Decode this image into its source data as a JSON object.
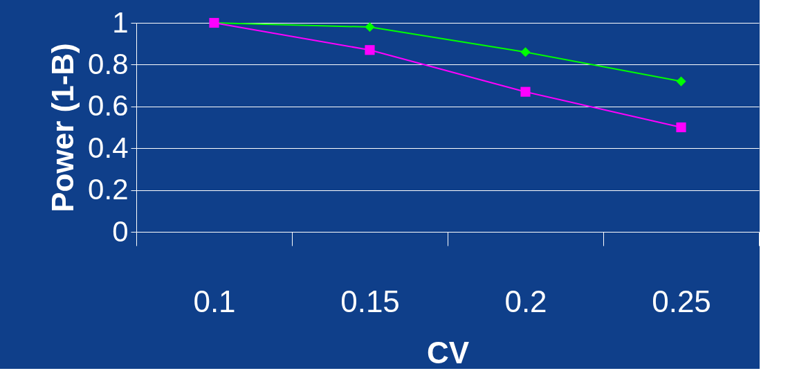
{
  "chart_data": {
    "type": "line",
    "xlabel": "CV",
    "ylabel": "Power (1-B)",
    "categories": [
      "0.1",
      "0.15",
      "0.2",
      "0.25"
    ],
    "series": [
      {
        "color": "#00ff00",
        "marker": "diamond",
        "values": [
          1.0,
          0.98,
          0.86,
          0.72
        ]
      },
      {
        "color": "#ff00ff",
        "marker": "square",
        "values": [
          1.0,
          0.87,
          0.67,
          0.5
        ]
      }
    ],
    "ylim": [
      0,
      1
    ],
    "yticks": [
      0,
      0.2,
      0.4,
      0.6,
      0.8,
      1
    ],
    "grid": "y",
    "legend": false,
    "line_style": "solid"
  }
}
